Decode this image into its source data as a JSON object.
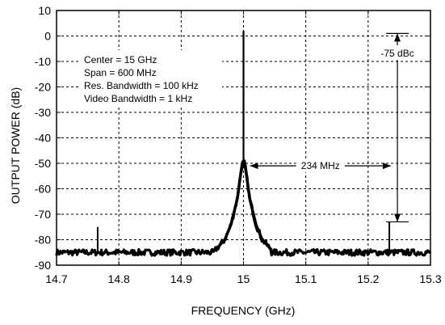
{
  "chart_data": {
    "type": "line",
    "title": "",
    "xlabel": "FREQUENCY (GHz)",
    "ylabel": "OUTPUT POWER (dB)",
    "xlim": [
      14.7,
      15.3
    ],
    "ylim": [
      -90,
      10
    ],
    "xticks": [
      14.7,
      14.8,
      14.9,
      15.0,
      15.1,
      15.2,
      15.3
    ],
    "xtick_labels": [
      "14.7",
      "14.8",
      "14.9",
      "15",
      "15.1",
      "15.2",
      "15.3"
    ],
    "yticks": [
      10,
      0,
      -10,
      -20,
      -30,
      -40,
      -50,
      -60,
      -70,
      -80,
      -90
    ],
    "ytick_labels": [
      "10",
      "0",
      "-10",
      "-20",
      "-30",
      "-40",
      "-50",
      "-60",
      "-70",
      "-80",
      "-90"
    ],
    "grid": true,
    "grid_style": "dashed",
    "series": [
      {
        "color": "#000000",
        "noise_floor": -85,
        "carrier": {
          "x": 15.0,
          "y": 2
        },
        "skirt": [
          [
            14.955,
            -84
          ],
          [
            14.97,
            -80
          ],
          [
            14.98,
            -74
          ],
          [
            14.99,
            -64
          ],
          [
            14.995,
            -55
          ],
          [
            14.998,
            -50
          ],
          [
            15.0,
            2
          ],
          [
            15.002,
            -50
          ],
          [
            15.005,
            -55
          ],
          [
            15.01,
            -64
          ],
          [
            15.02,
            -74
          ],
          [
            15.03,
            -80
          ],
          [
            15.045,
            -84
          ]
        ],
        "spurs": [
          {
            "x": 14.766,
            "y": -75
          },
          {
            "x": 15.234,
            "y": -73
          }
        ]
      }
    ],
    "annotations": {
      "settings": [
        "Center = 15 GHz",
        "Span = 600 MHz",
        "Res. Bandwidth = 100 kHz",
        "Video Bandwidth = 1 kHz"
      ],
      "dbc": {
        "text": "-75 dBc",
        "x": 15.234,
        "y_top": 1,
        "y_bottom": -73
      },
      "spacing": {
        "text": "234 MHz",
        "x_start": 15.0,
        "x_end": 15.234,
        "y": -51
      }
    },
    "colors": {
      "line": "#000000",
      "grid": "#000000",
      "background": "#ffffff"
    }
  }
}
